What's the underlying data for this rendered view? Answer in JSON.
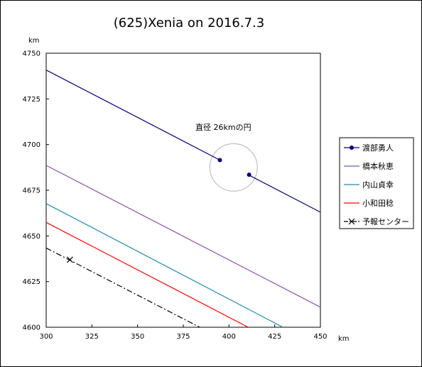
{
  "chart_data": {
    "type": "line",
    "title": "(625)Xenia on 2016.7.3",
    "xlabel": "km",
    "ylabel": "km",
    "xlim": [
      300,
      450
    ],
    "ylim": [
      4600,
      4750
    ],
    "x_ticks": [
      "300",
      "325",
      "350",
      "375",
      "400",
      "425",
      "450"
    ],
    "y_ticks": [
      "4750",
      "4725",
      "4700",
      "4675",
      "4650",
      "4625",
      "4600"
    ],
    "grid": false,
    "legend_position": "right",
    "annotation": "直径 26kmの円",
    "circle": {
      "center": [
        402.5,
        4687.5
      ],
      "diameter": 26,
      "color": "#c0c0c0"
    },
    "series": [
      {
        "name": "渡部勇人",
        "color": "#000080",
        "style": "solid",
        "x": [
          300,
          450
        ],
        "y": [
          4740.8,
          4663.0
        ],
        "markers": [
          [
            395,
            4691.5
          ],
          [
            411,
            4683.5
          ]
        ],
        "gap": [
          395,
          411
        ]
      },
      {
        "name": "橋本秋恵",
        "color": "#9050b0",
        "style": "solid",
        "x": [
          300,
          450
        ],
        "y": [
          4688.6,
          4611.0
        ]
      },
      {
        "name": "内山貞幸",
        "color": "#1e8ab4",
        "style": "solid",
        "x": [
          300,
          429.5
        ],
        "y": [
          4667.7,
          4600
        ]
      },
      {
        "name": "小和田稔",
        "color": "#ff0000",
        "style": "solid",
        "x": [
          300,
          410.5
        ],
        "y": [
          4657.4,
          4600
        ]
      },
      {
        "name": "予報センター",
        "color": "#000000",
        "style": "dashdot",
        "x": [
          300,
          384
        ],
        "y": [
          4643.4,
          4600
        ],
        "markers": [
          [
            313,
            4637
          ]
        ]
      }
    ]
  }
}
